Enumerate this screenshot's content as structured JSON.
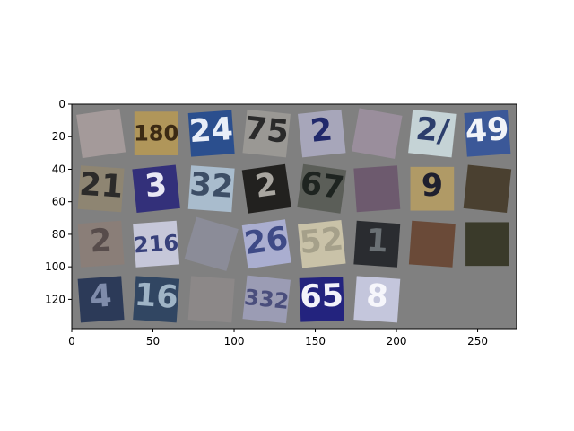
{
  "chart_data": {
    "type": "image",
    "title": "",
    "xlabel": "",
    "ylabel": "",
    "xlim": [
      0,
      274
    ],
    "ylim": [
      138,
      0
    ],
    "x_ticks": [
      0,
      50,
      100,
      150,
      200,
      250
    ],
    "y_ticks": [
      0,
      20,
      40,
      60,
      80,
      100,
      120
    ],
    "background": "#808080",
    "grid": false,
    "patches": [
      {
        "row": 0,
        "col": 0,
        "text": "",
        "bg": "#a49a9a",
        "fg": "#6c6070",
        "rot": -8
      },
      {
        "row": 0,
        "col": 1,
        "text": "180",
        "bg": "#b0965a",
        "fg": "#3b2a14",
        "rot": 0
      },
      {
        "row": 0,
        "col": 2,
        "text": "24",
        "bg": "#2b4f8e",
        "fg": "#e8eef8",
        "rot": -4
      },
      {
        "row": 0,
        "col": 3,
        "text": "75",
        "bg": "#9a9894",
        "fg": "#2a2a2a",
        "rot": 6
      },
      {
        "row": 0,
        "col": 4,
        "text": "2",
        "bg": "#a7a6ba",
        "fg": "#20286a",
        "rot": -6
      },
      {
        "row": 0,
        "col": 5,
        "text": "",
        "bg": "#9a8e9c",
        "fg": "#2a2236",
        "rot": 10
      },
      {
        "row": 0,
        "col": 6,
        "text": "2/",
        "bg": "#c5d3d6",
        "fg": "#2c3e6c",
        "rot": 6
      },
      {
        "row": 0,
        "col": 7,
        "text": "49",
        "bg": "#3b5898",
        "fg": "#f1f3f8",
        "rot": -4
      },
      {
        "row": 1,
        "col": 0,
        "text": "21",
        "bg": "#8e8572",
        "fg": "#2c2b2a",
        "rot": 4
      },
      {
        "row": 1,
        "col": 1,
        "text": "3",
        "bg": "#33307a",
        "fg": "#e9e8f4",
        "rot": -6
      },
      {
        "row": 1,
        "col": 2,
        "text": "32",
        "bg": "#a9bccd",
        "fg": "#3d4e66",
        "rot": 4
      },
      {
        "row": 1,
        "col": 3,
        "text": "2",
        "bg": "#22211f",
        "fg": "#a9a6a0",
        "rot": -8
      },
      {
        "row": 1,
        "col": 4,
        "text": "67",
        "bg": "#5b5e58",
        "fg": "#1e2420",
        "rot": 8
      },
      {
        "row": 1,
        "col": 5,
        "text": "",
        "bg": "#6d5a6e",
        "fg": "#d8cfe0",
        "rot": -4
      },
      {
        "row": 1,
        "col": 6,
        "text": "9",
        "bg": "#b09a66",
        "fg": "#1e1f2e",
        "rot": 0
      },
      {
        "row": 1,
        "col": 7,
        "text": "",
        "bg": "#4a4030",
        "fg": "#201c15",
        "rot": 6
      },
      {
        "row": 2,
        "col": 0,
        "text": "2",
        "bg": "#8a7e78",
        "fg": "#574c4b",
        "rot": -4
      },
      {
        "row": 2,
        "col": 1,
        "text": "216",
        "bg": "#c6c7d9",
        "fg": "#37407a",
        "rot": -4
      },
      {
        "row": 2,
        "col": 2,
        "text": "",
        "bg": "#8b8c98",
        "fg": "#2f3040",
        "rot": 16
      },
      {
        "row": 2,
        "col": 3,
        "text": "26",
        "bg": "#aaaed0",
        "fg": "#3e4a86",
        "rot": -8
      },
      {
        "row": 2,
        "col": 4,
        "text": "52",
        "bg": "#c9c2a8",
        "fg": "#a5a08a",
        "rot": -6
      },
      {
        "row": 2,
        "col": 5,
        "text": "1",
        "bg": "#2a2c30",
        "fg": "#6a7074",
        "rot": 4
      },
      {
        "row": 2,
        "col": 6,
        "text": "",
        "bg": "#6a4a38",
        "fg": "#3e2a22",
        "rot": 4
      },
      {
        "row": 2,
        "col": 7,
        "text": "",
        "bg": "#3a3a2a",
        "fg": "#5e5e40",
        "rot": 0
      },
      {
        "row": 3,
        "col": 0,
        "text": "4",
        "bg": "#2c3a58",
        "fg": "#7f8cab",
        "rot": -4
      },
      {
        "row": 3,
        "col": 1,
        "text": "16",
        "bg": "#314662",
        "fg": "#9fb4c6",
        "rot": 4
      },
      {
        "row": 3,
        "col": 2,
        "text": "",
        "bg": "#8c8888",
        "fg": "#6e6a6a",
        "rot": 4
      },
      {
        "row": 3,
        "col": 3,
        "text": "332",
        "bg": "#9b9cb4",
        "fg": "#4a4e7c",
        "rot": 6
      },
      {
        "row": 3,
        "col": 4,
        "text": "65",
        "bg": "#23237e",
        "fg": "#f2f2fa",
        "rot": -2
      },
      {
        "row": 3,
        "col": 5,
        "text": "8",
        "bg": "#c4c6dc",
        "fg": "#f6f6fb",
        "rot": 4
      }
    ]
  }
}
